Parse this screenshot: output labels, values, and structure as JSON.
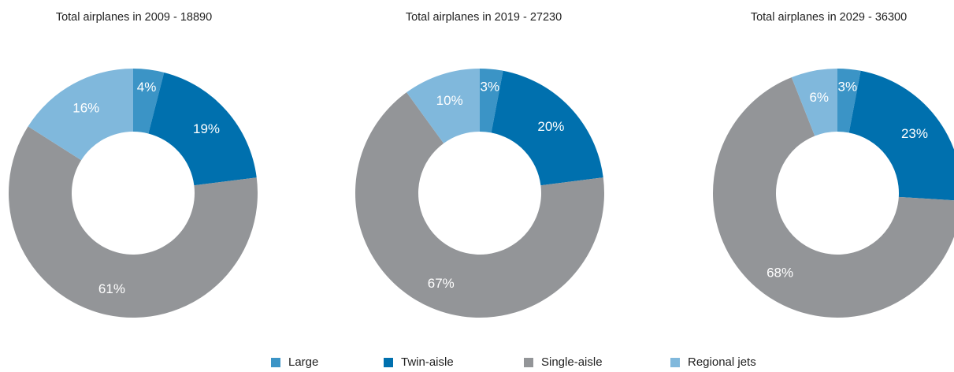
{
  "colors": {
    "large": "#3b94c6",
    "twin_aisle": "#0070ae",
    "single_aisle": "#939598",
    "regional_jets": "#80b8dc"
  },
  "chart_data": [
    {
      "type": "pie",
      "subtype": "donut",
      "title": "Total airplanes in 2009 - 18890",
      "categories": [
        "Large",
        "Twin-aisle",
        "Single-aisle",
        "Regional jets"
      ],
      "values": [
        4,
        19,
        61,
        16
      ],
      "labels": [
        "4%",
        "19%",
        "61%",
        "16%"
      ]
    },
    {
      "type": "pie",
      "subtype": "donut",
      "title": "Total airplanes in 2019 - 27230",
      "categories": [
        "Large",
        "Twin-aisle",
        "Single-aisle",
        "Regional jets"
      ],
      "values": [
        3,
        20,
        67,
        10
      ],
      "labels": [
        "3%",
        "20%",
        "67%",
        "10%"
      ]
    },
    {
      "type": "pie",
      "subtype": "donut",
      "title": "Total airplanes in 2029 - 36300",
      "categories": [
        "Large",
        "Twin-aisle",
        "Single-aisle",
        "Regional jets"
      ],
      "values": [
        3,
        23,
        68,
        6
      ],
      "labels": [
        "3%",
        "23%",
        "68%",
        "6%"
      ]
    }
  ],
  "legend": {
    "position": "bottom",
    "items": [
      {
        "label": "Large",
        "color": "#3b94c6"
      },
      {
        "label": "Twin-aisle",
        "color": "#0070ae"
      },
      {
        "label": "Single-aisle",
        "color": "#939598"
      },
      {
        "label": "Regional jets",
        "color": "#80b8dc"
      }
    ]
  }
}
